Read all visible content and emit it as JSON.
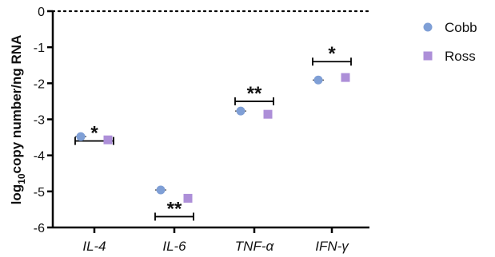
{
  "chart_data": {
    "type": "scatter",
    "title": "",
    "xlabel": "",
    "ylabel": {
      "prefix": "log",
      "sub": "10",
      "rest": "copy number/ng RNA"
    },
    "ylim": [
      -6,
      0
    ],
    "yticks": [
      "0",
      "-1",
      "-2",
      "-3",
      "-4",
      "-5",
      "-6"
    ],
    "categories": [
      "IL-4",
      "IL-6",
      "TNF-α",
      "IFN-γ"
    ],
    "series": [
      {
        "name": "Cobb",
        "marker": "circle",
        "color": "#7f9fd6",
        "values": [
          -3.48,
          -4.96,
          -2.77,
          -1.91
        ]
      },
      {
        "name": "Ross",
        "marker": "square",
        "color": "#ad8fd8",
        "values": [
          -3.57,
          -5.19,
          -2.86,
          -1.84
        ]
      }
    ],
    "significance": [
      "*",
      "**",
      "**",
      "*"
    ],
    "significance_y": [
      -3.6,
      -5.7,
      -2.5,
      -1.4
    ],
    "reference_line": 0,
    "grid": false,
    "legend": "right"
  }
}
